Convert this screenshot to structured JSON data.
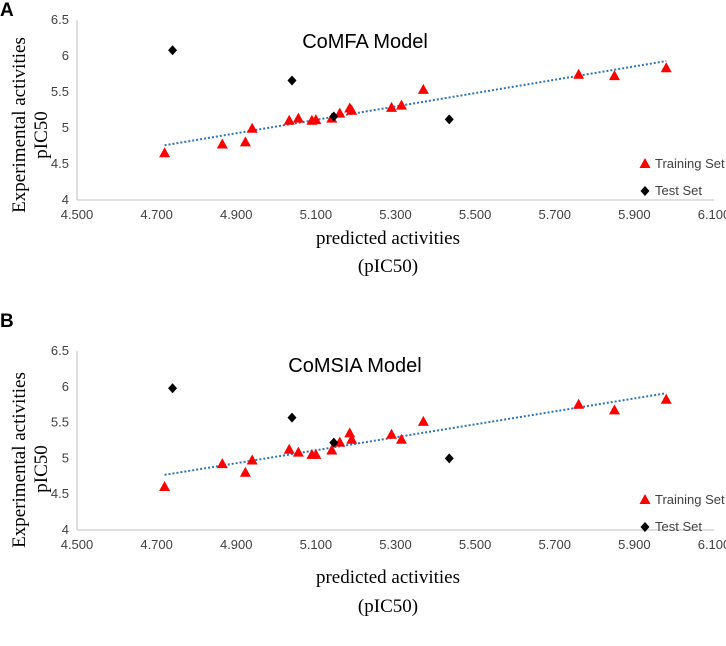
{
  "chart_data": [
    {
      "type": "scatter",
      "panel_label": "A",
      "title": "CoMFA Model",
      "xlabel_line1": "predicted activities",
      "xlabel_line2": "(pIC50)",
      "ylabel_line1": "Experimental activities",
      "ylabel_line2": "pIC50",
      "xlim": [
        4.5,
        6.1
      ],
      "ylim": [
        4,
        6.5
      ],
      "x_ticks": [
        "4.500",
        "4.700",
        "4.900",
        "5.100",
        "5.300",
        "5.500",
        "5.700",
        "5.900",
        "6.100"
      ],
      "y_ticks": [
        "4",
        "4.5",
        "5",
        "5.5",
        "6",
        "6.5"
      ],
      "x_tick_values": [
        4.5,
        4.7,
        4.9,
        5.1,
        5.3,
        5.5,
        5.7,
        5.9,
        6.1
      ],
      "y_tick_values": [
        4,
        4.5,
        5,
        5.5,
        6,
        6.5
      ],
      "legend_position": "right",
      "trendline": {
        "x": [
          4.72,
          5.98
        ],
        "y": [
          4.76,
          5.93
        ],
        "color": "#2e75b6"
      },
      "series": [
        {
          "name": "Training Set",
          "marker": "triangle",
          "color": "#ff0000",
          "points": [
            [
              4.72,
              4.65
            ],
            [
              4.865,
              4.77
            ],
            [
              4.923,
              4.8
            ],
            [
              4.94,
              4.99
            ],
            [
              5.033,
              5.1
            ],
            [
              5.056,
              5.13
            ],
            [
              5.09,
              5.1
            ],
            [
              5.1,
              5.11
            ],
            [
              5.14,
              5.13
            ],
            [
              5.16,
              5.2
            ],
            [
              5.185,
              5.27
            ],
            [
              5.19,
              5.24
            ],
            [
              5.29,
              5.28
            ],
            [
              5.315,
              5.31
            ],
            [
              5.37,
              5.53
            ],
            [
              5.76,
              5.74
            ],
            [
              5.85,
              5.72
            ],
            [
              5.98,
              5.83
            ]
          ]
        },
        {
          "name": "Test Set",
          "marker": "diamond",
          "color": "#000000",
          "points": [
            [
              4.74,
              6.08
            ],
            [
              5.04,
              5.66
            ],
            [
              5.145,
              5.16
            ],
            [
              5.435,
              5.12
            ]
          ]
        }
      ]
    },
    {
      "type": "scatter",
      "panel_label": "B",
      "title": "CoMSIA Model",
      "xlabel_line1": "predicted activities",
      "xlabel_line2": "(pIC50)",
      "ylabel_line1": "Experimental activities",
      "ylabel_line2": "pIC50",
      "xlim": [
        4.5,
        6.1
      ],
      "ylim": [
        4,
        6.5
      ],
      "x_ticks": [
        "4.500",
        "4.700",
        "4.900",
        "5.100",
        "5.300",
        "5.500",
        "5.700",
        "5.900",
        "6.100"
      ],
      "y_ticks": [
        "4",
        "4.5",
        "5",
        "5.5",
        "6",
        "6.5"
      ],
      "x_tick_values": [
        4.5,
        4.7,
        4.9,
        5.1,
        5.3,
        5.5,
        5.7,
        5.9,
        6.1
      ],
      "y_tick_values": [
        4,
        4.5,
        5,
        5.5,
        6,
        6.5
      ],
      "legend_position": "right",
      "trendline": {
        "x": [
          4.72,
          5.98
        ],
        "y": [
          4.77,
          5.91
        ],
        "color": "#2e75b6"
      },
      "series": [
        {
          "name": "Training Set",
          "marker": "triangle",
          "color": "#ff0000",
          "points": [
            [
              4.72,
              4.6
            ],
            [
              4.865,
              4.92
            ],
            [
              4.923,
              4.8
            ],
            [
              4.94,
              4.97
            ],
            [
              5.033,
              5.12
            ],
            [
              5.056,
              5.08
            ],
            [
              5.09,
              5.05
            ],
            [
              5.1,
              5.05
            ],
            [
              5.14,
              5.11
            ],
            [
              5.16,
              5.22
            ],
            [
              5.185,
              5.35
            ],
            [
              5.19,
              5.26
            ],
            [
              5.29,
              5.33
            ],
            [
              5.315,
              5.26
            ],
            [
              5.37,
              5.51
            ],
            [
              5.76,
              5.75
            ],
            [
              5.85,
              5.67
            ],
            [
              5.98,
              5.82
            ]
          ]
        },
        {
          "name": "Test Set",
          "marker": "diamond",
          "color": "#000000",
          "points": [
            [
              4.74,
              5.98
            ],
            [
              5.04,
              5.57
            ],
            [
              5.145,
              5.22
            ],
            [
              5.435,
              5.0
            ]
          ]
        }
      ]
    }
  ]
}
